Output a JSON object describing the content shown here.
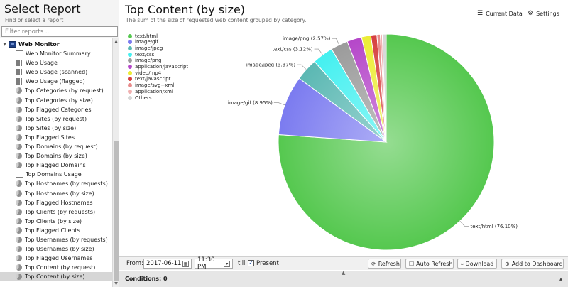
{
  "sidebar": {
    "title": "Select Report",
    "subtitle": "Find or select a report",
    "filter_placeholder": "Filter reports ...",
    "category": {
      "label": "Web Monitor",
      "expanded": true
    },
    "items": [
      {
        "label": "Web Monitor Summary",
        "icon": "list-icon"
      },
      {
        "label": "Web Usage",
        "icon": "bar-chart-icon"
      },
      {
        "label": "Web Usage (scanned)",
        "icon": "bar-chart-icon"
      },
      {
        "label": "Web Usage (flagged)",
        "icon": "bar-chart-icon"
      },
      {
        "label": "Top Categories (by request)",
        "icon": "pie-chart-icon"
      },
      {
        "label": "Top Categories (by size)",
        "icon": "pie-chart-icon"
      },
      {
        "label": "Top Flagged Categories",
        "icon": "pie-chart-icon"
      },
      {
        "label": "Top Sites (by request)",
        "icon": "pie-chart-icon"
      },
      {
        "label": "Top Sites (by size)",
        "icon": "pie-chart-icon"
      },
      {
        "label": "Top Flagged Sites",
        "icon": "pie-chart-icon"
      },
      {
        "label": "Top Domains (by request)",
        "icon": "pie-chart-icon"
      },
      {
        "label": "Top Domains (by size)",
        "icon": "pie-chart-icon"
      },
      {
        "label": "Top Flagged Domains",
        "icon": "pie-chart-icon"
      },
      {
        "label": "Top Domains Usage",
        "icon": "line-chart-icon"
      },
      {
        "label": "Top Hostnames (by requests)",
        "icon": "pie-chart-icon"
      },
      {
        "label": "Top Hostnames (by size)",
        "icon": "pie-chart-icon"
      },
      {
        "label": "Top Flagged Hostnames",
        "icon": "pie-chart-icon"
      },
      {
        "label": "Top Clients (by requests)",
        "icon": "pie-chart-icon"
      },
      {
        "label": "Top Clients (by size)",
        "icon": "pie-chart-icon"
      },
      {
        "label": "Top Flagged Clients",
        "icon": "pie-chart-icon"
      },
      {
        "label": "Top Usernames (by requests)",
        "icon": "pie-chart-icon"
      },
      {
        "label": "Top Usernames (by size)",
        "icon": "pie-chart-icon"
      },
      {
        "label": "Top Flagged Usernames",
        "icon": "pie-chart-icon"
      },
      {
        "label": "Top Content (by request)",
        "icon": "pie-chart-icon"
      },
      {
        "label": "Top Content (by size)",
        "icon": "pie-chart-icon",
        "selected": true
      }
    ]
  },
  "report": {
    "title": "Top Content (by size)",
    "description": "The sum of the size of requested web content grouped by category.",
    "current_data_label": "Current Data",
    "settings_label": "Settings"
  },
  "chart_data": {
    "type": "pie",
    "title": "",
    "legend_position": "top-left",
    "slices": [
      {
        "name": "text/html",
        "value": 76.1,
        "color": "#55c84f",
        "label": "text/html (76.10%)"
      },
      {
        "name": "image/gif",
        "value": 8.95,
        "color": "#7b7bf0",
        "label": "image/gif (8.95%)"
      },
      {
        "name": "image/jpeg",
        "value": 3.37,
        "color": "#5bb8b3",
        "label": "image/jpeg (3.37%)"
      },
      {
        "name": "text/css",
        "value": 3.12,
        "color": "#44f0f0",
        "label": "text/css (3.12%)"
      },
      {
        "name": "image/png",
        "value": 2.57,
        "color": "#9b9b9b",
        "label": "image/png (2.57%)"
      },
      {
        "name": "application/javascript",
        "value": 2.2,
        "color": "#b547c9",
        "label": ""
      },
      {
        "name": "video/mp4",
        "value": 1.4,
        "color": "#ecec36",
        "label": ""
      },
      {
        "name": "text/javascript",
        "value": 0.9,
        "color": "#d63f3f",
        "label": ""
      },
      {
        "name": "image/svg+xml",
        "value": 0.5,
        "color": "#e88a8a",
        "label": ""
      },
      {
        "name": "application/xml",
        "value": 0.3,
        "color": "#f0b0b0",
        "label": ""
      },
      {
        "name": "Others",
        "value": 0.59,
        "color": "#d6d6d6",
        "label": ""
      }
    ]
  },
  "controls": {
    "from_label": "From:",
    "date_value": "2017-06-11",
    "time_value": "11:30 PM",
    "till_label": "till",
    "present_checked": true,
    "present_label": "Present",
    "refresh_label": "Refresh",
    "auto_refresh_label": "Auto Refresh",
    "download_label": "Download",
    "add_dashboard_label": "Add to Dashboard"
  },
  "conditions": {
    "label": "Conditions: 0"
  }
}
